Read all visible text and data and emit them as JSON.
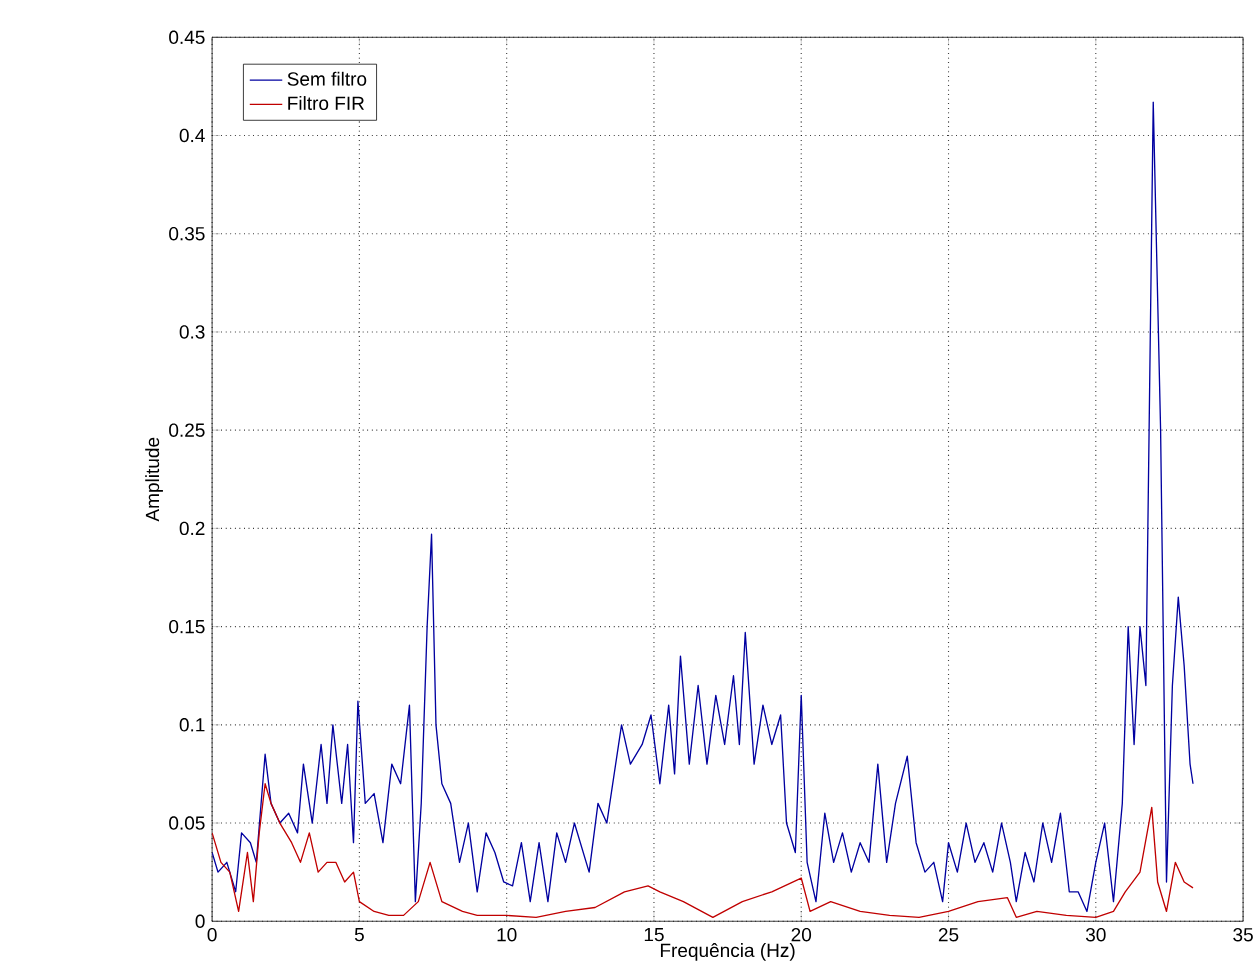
{
  "chart_data": {
    "type": "line",
    "xlabel": "Frequência (Hz)",
    "ylabel": "Amplitude",
    "xlim": [
      0,
      35
    ],
    "ylim": [
      0,
      0.45
    ],
    "xticks": [
      0,
      5,
      10,
      15,
      20,
      25,
      30,
      35
    ],
    "yticks": [
      0,
      0.05,
      0.1,
      0.15,
      0.2,
      0.25,
      0.3,
      0.35,
      0.4,
      0.45
    ],
    "grid": true,
    "legend": "top left",
    "marker": "none",
    "line_style": "solid",
    "series": [
      {
        "name": "Sem filtro",
        "color": "#0000a0",
        "x": [
          0,
          0.2,
          0.5,
          0.8,
          1.0,
          1.3,
          1.5,
          1.8,
          2.0,
          2.3,
          2.6,
          2.9,
          3.1,
          3.4,
          3.7,
          3.9,
          4.1,
          4.4,
          4.6,
          4.8,
          4.95,
          5.2,
          5.5,
          5.8,
          6.1,
          6.4,
          6.7,
          6.9,
          7.1,
          7.3,
          7.45,
          7.6,
          7.8,
          8.1,
          8.4,
          8.7,
          9.0,
          9.3,
          9.6,
          9.9,
          10.2,
          10.5,
          10.8,
          11.1,
          11.4,
          11.7,
          12.0,
          12.3,
          12.6,
          12.8,
          13.1,
          13.4,
          13.7,
          13.9,
          14.2,
          14.6,
          14.9,
          15.2,
          15.5,
          15.7,
          15.9,
          16.2,
          16.5,
          16.8,
          17.1,
          17.4,
          17.7,
          17.9,
          18.1,
          18.4,
          18.7,
          19.0,
          19.3,
          19.5,
          19.8,
          20.0,
          20.2,
          20.5,
          20.8,
          21.1,
          21.4,
          21.7,
          22.0,
          22.3,
          22.6,
          22.9,
          23.2,
          23.6,
          23.9,
          24.2,
          24.5,
          24.8,
          25.0,
          25.3,
          25.6,
          25.9,
          26.2,
          26.5,
          26.8,
          27.1,
          27.3,
          27.6,
          27.9,
          28.2,
          28.5,
          28.8,
          29.1,
          29.4,
          29.7,
          30.0,
          30.3,
          30.6,
          30.9,
          31.1,
          31.3,
          31.5,
          31.7,
          31.95,
          32.2,
          32.4,
          32.6,
          32.8,
          33.0,
          33.2,
          33.3
        ],
        "values": [
          0.035,
          0.025,
          0.03,
          0.015,
          0.045,
          0.04,
          0.03,
          0.085,
          0.06,
          0.05,
          0.055,
          0.045,
          0.08,
          0.05,
          0.09,
          0.06,
          0.1,
          0.06,
          0.09,
          0.04,
          0.112,
          0.06,
          0.065,
          0.04,
          0.08,
          0.07,
          0.11,
          0.01,
          0.06,
          0.15,
          0.197,
          0.1,
          0.07,
          0.06,
          0.03,
          0.05,
          0.015,
          0.045,
          0.035,
          0.02,
          0.018,
          0.04,
          0.01,
          0.04,
          0.01,
          0.045,
          0.03,
          0.05,
          0.035,
          0.025,
          0.06,
          0.05,
          0.08,
          0.1,
          0.08,
          0.09,
          0.105,
          0.07,
          0.11,
          0.075,
          0.135,
          0.08,
          0.12,
          0.08,
          0.115,
          0.09,
          0.125,
          0.09,
          0.147,
          0.08,
          0.11,
          0.09,
          0.105,
          0.05,
          0.035,
          0.115,
          0.03,
          0.01,
          0.055,
          0.03,
          0.045,
          0.025,
          0.04,
          0.03,
          0.08,
          0.03,
          0.06,
          0.084,
          0.04,
          0.025,
          0.03,
          0.01,
          0.04,
          0.025,
          0.05,
          0.03,
          0.04,
          0.025,
          0.05,
          0.03,
          0.01,
          0.035,
          0.02,
          0.05,
          0.03,
          0.055,
          0.015,
          0.015,
          0.005,
          0.03,
          0.05,
          0.01,
          0.06,
          0.15,
          0.09,
          0.15,
          0.12,
          0.417,
          0.25,
          0.02,
          0.12,
          0.165,
          0.13,
          0.08,
          0.07
        ]
      },
      {
        "name": "Filtro FIR",
        "color": "#c00000",
        "x": [
          0,
          0.3,
          0.6,
          0.9,
          1.2,
          1.4,
          1.6,
          1.8,
          2.0,
          2.3,
          2.7,
          3.0,
          3.3,
          3.6,
          3.9,
          4.2,
          4.5,
          4.8,
          5.0,
          5.5,
          6.0,
          6.5,
          7.0,
          7.4,
          7.8,
          8.5,
          9.0,
          10,
          11,
          12,
          13,
          14,
          14.8,
          15.2,
          16,
          17,
          18,
          19,
          20,
          20.3,
          21,
          22,
          23,
          24,
          25,
          26,
          27,
          27.3,
          28,
          29,
          30,
          30.6,
          31,
          31.5,
          31.9,
          32.1,
          32.4,
          32.7,
          33.0,
          33.3
        ],
        "values": [
          0.045,
          0.03,
          0.025,
          0.005,
          0.035,
          0.01,
          0.045,
          0.07,
          0.06,
          0.05,
          0.04,
          0.03,
          0.045,
          0.025,
          0.03,
          0.03,
          0.02,
          0.025,
          0.01,
          0.005,
          0.003,
          0.003,
          0.01,
          0.03,
          0.01,
          0.005,
          0.003,
          0.003,
          0.002,
          0.005,
          0.007,
          0.015,
          0.018,
          0.015,
          0.01,
          0.002,
          0.01,
          0.015,
          0.022,
          0.005,
          0.01,
          0.005,
          0.003,
          0.002,
          0.005,
          0.01,
          0.012,
          0.002,
          0.005,
          0.003,
          0.002,
          0.005,
          0.015,
          0.025,
          0.058,
          0.02,
          0.005,
          0.03,
          0.02,
          0.017
        ]
      }
    ]
  }
}
